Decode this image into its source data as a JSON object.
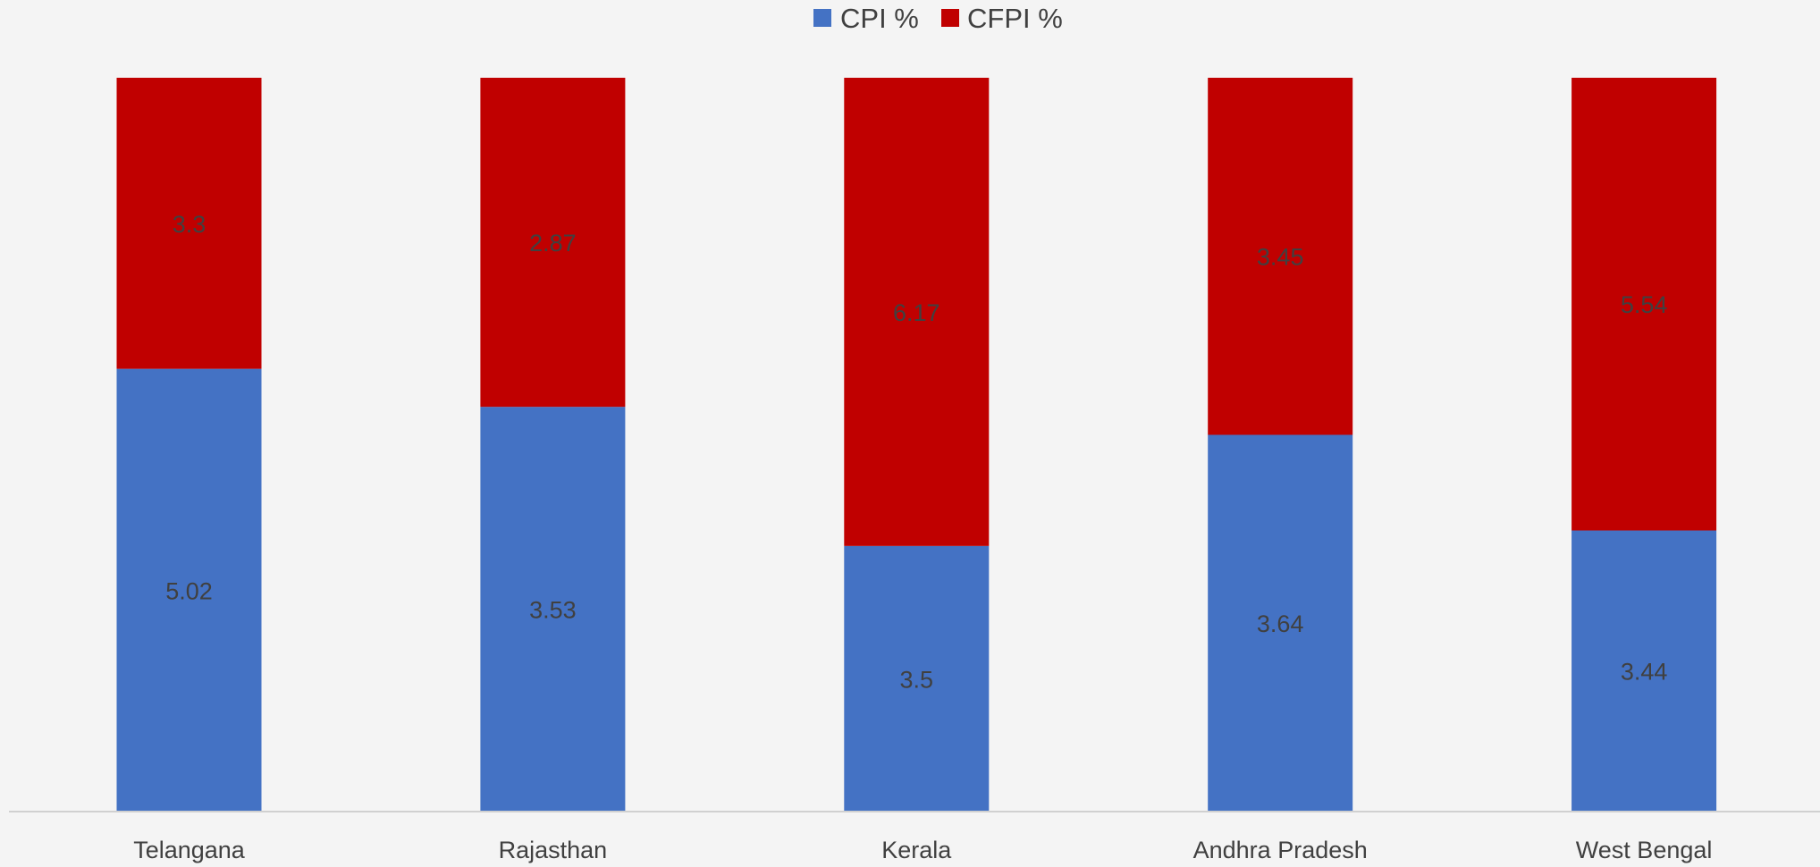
{
  "chart_data": {
    "type": "bar",
    "stacking": "percent",
    "legend_position": "top",
    "grid": false,
    "categories": [
      "Telangana",
      "Rajasthan",
      "Kerala",
      "Andhra Pradesh",
      "West Bengal"
    ],
    "series": [
      {
        "name": "CPI %",
        "color": "#4472C4",
        "values": [
          5.02,
          3.53,
          3.5,
          3.64,
          3.44
        ]
      },
      {
        "name": "CFPI %",
        "color": "#C00000",
        "values": [
          3.3,
          2.87,
          6.17,
          3.45,
          5.54
        ]
      }
    ]
  }
}
